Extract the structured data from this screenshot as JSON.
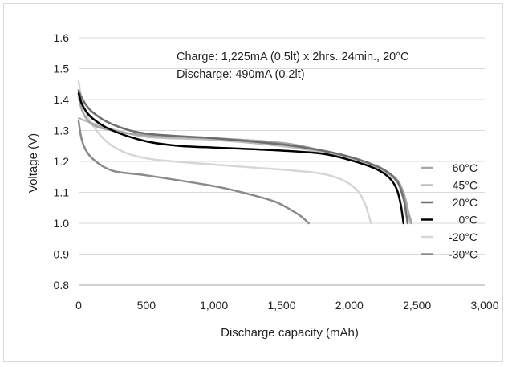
{
  "chart_data": {
    "type": "line",
    "title": "",
    "xlabel": "Discharge capacity (mAh)",
    "ylabel": "Voltage (V)",
    "xlim": [
      0,
      3000
    ],
    "ylim": [
      0.8,
      1.6
    ],
    "grid": "horizontal",
    "x_ticks": [
      "0",
      "500",
      "1,000",
      "1,500",
      "2,000",
      "2,500",
      "3,000"
    ],
    "y_ticks": [
      "0.8",
      "0.9",
      "1.0",
      "1.1",
      "1.2",
      "1.3",
      "1.4",
      "1.5",
      "1.6"
    ],
    "annotations": [
      "Charge: 1,225mA (0.5lt) x 2hrs. 24min., 20°C",
      "Discharge: 490mA (0.2lt)"
    ],
    "legend_position": "right",
    "series": [
      {
        "name": "60°C",
        "color": "#a6a6a6",
        "width": 2.5,
        "points": [
          [
            0,
            1.41
          ],
          [
            30,
            1.36
          ],
          [
            100,
            1.32
          ],
          [
            250,
            1.3
          ],
          [
            500,
            1.285
          ],
          [
            1000,
            1.275
          ],
          [
            1500,
            1.26
          ],
          [
            1800,
            1.235
          ],
          [
            2000,
            1.215
          ],
          [
            2200,
            1.185
          ],
          [
            2300,
            1.16
          ],
          [
            2370,
            1.13
          ],
          [
            2410,
            1.08
          ],
          [
            2440,
            1.03
          ],
          [
            2460,
            1.0
          ]
        ]
      },
      {
        "name": "45°C",
        "color": "#bdbdbd",
        "width": 2.5,
        "points": [
          [
            0,
            1.34
          ],
          [
            60,
            1.33
          ],
          [
            200,
            1.31
          ],
          [
            500,
            1.28
          ],
          [
            1000,
            1.27
          ],
          [
            1500,
            1.25
          ],
          [
            1800,
            1.23
          ],
          [
            2000,
            1.21
          ],
          [
            2200,
            1.18
          ],
          [
            2300,
            1.155
          ],
          [
            2380,
            1.12
          ],
          [
            2420,
            1.07
          ],
          [
            2440,
            1.02
          ],
          [
            2450,
            1.0
          ]
        ]
      },
      {
        "name": "20°C",
        "color": "#6e6e6e",
        "width": 2.5,
        "points": [
          [
            0,
            1.43
          ],
          [
            30,
            1.4
          ],
          [
            100,
            1.36
          ],
          [
            250,
            1.32
          ],
          [
            500,
            1.29
          ],
          [
            1000,
            1.275
          ],
          [
            1500,
            1.255
          ],
          [
            1800,
            1.235
          ],
          [
            2000,
            1.215
          ],
          [
            2200,
            1.185
          ],
          [
            2300,
            1.16
          ],
          [
            2360,
            1.13
          ],
          [
            2400,
            1.08
          ],
          [
            2420,
            1.03
          ],
          [
            2430,
            1.0
          ]
        ]
      },
      {
        "name": "0°C",
        "color": "#000000",
        "width": 2.5,
        "points": [
          [
            0,
            1.42
          ],
          [
            30,
            1.38
          ],
          [
            100,
            1.34
          ],
          [
            250,
            1.3
          ],
          [
            500,
            1.265
          ],
          [
            750,
            1.25
          ],
          [
            1000,
            1.245
          ],
          [
            1500,
            1.235
          ],
          [
            1800,
            1.225
          ],
          [
            2000,
            1.205
          ],
          [
            2200,
            1.175
          ],
          [
            2300,
            1.145
          ],
          [
            2350,
            1.11
          ],
          [
            2380,
            1.06
          ],
          [
            2400,
            1.0
          ]
        ]
      },
      {
        "name": "-20°C",
        "color": "#d6d6d6",
        "width": 2.5,
        "points": [
          [
            0,
            1.46
          ],
          [
            30,
            1.39
          ],
          [
            100,
            1.32
          ],
          [
            250,
            1.25
          ],
          [
            500,
            1.21
          ],
          [
            1000,
            1.19
          ],
          [
            1300,
            1.18
          ],
          [
            1600,
            1.17
          ],
          [
            1800,
            1.16
          ],
          [
            1950,
            1.14
          ],
          [
            2050,
            1.11
          ],
          [
            2110,
            1.07
          ],
          [
            2140,
            1.03
          ],
          [
            2160,
            1.0
          ]
        ]
      },
      {
        "name": "-30°C",
        "color": "#8a8a8a",
        "width": 2.5,
        "points": [
          [
            0,
            1.33
          ],
          [
            30,
            1.26
          ],
          [
            100,
            1.21
          ],
          [
            250,
            1.17
          ],
          [
            500,
            1.155
          ],
          [
            1000,
            1.12
          ],
          [
            1250,
            1.095
          ],
          [
            1450,
            1.07
          ],
          [
            1580,
            1.04
          ],
          [
            1650,
            1.02
          ],
          [
            1700,
            1.0
          ]
        ]
      }
    ]
  }
}
